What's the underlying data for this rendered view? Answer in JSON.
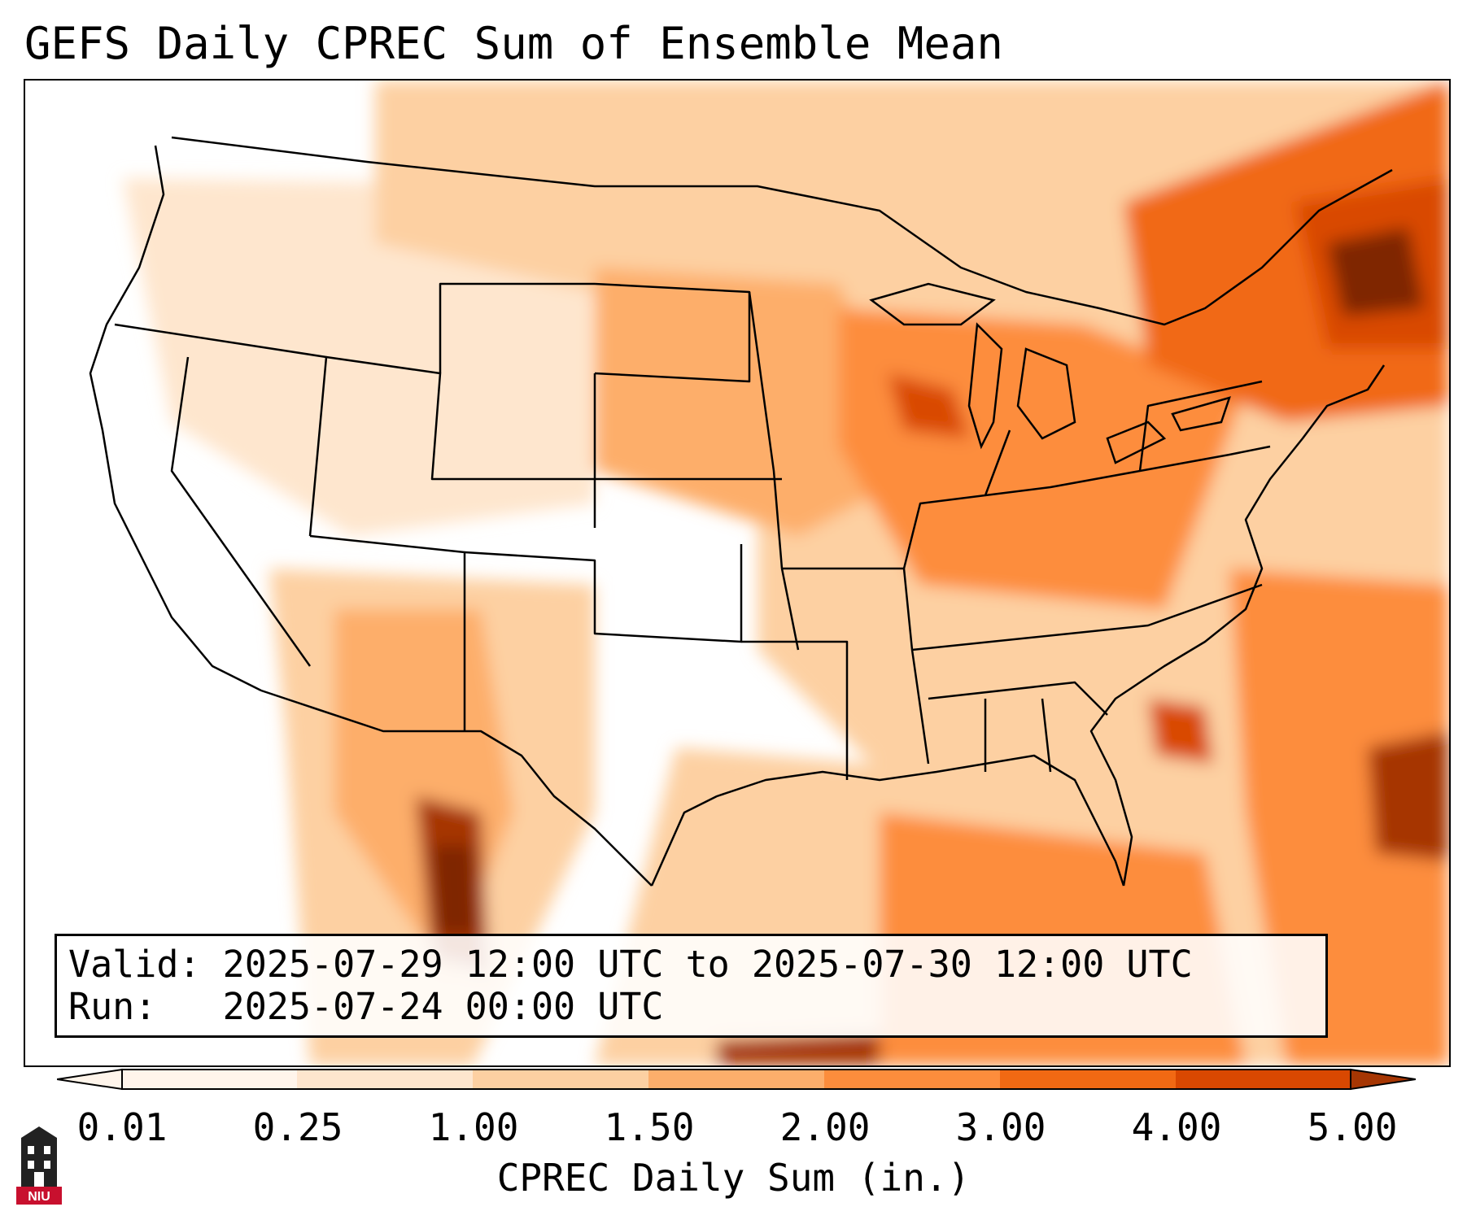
{
  "title": "GEFS Daily CPREC Sum of Ensemble Mean",
  "valid_line": "Valid: 2025-07-29 12:00 UTC to 2025-07-30 12:00 UTC",
  "run_line": "Run:   2025-07-24 00:00 UTC",
  "colorbar": {
    "label": "CPREC Daily Sum (in.)",
    "ticks": [
      "0.01",
      "0.25",
      "1.00",
      "1.50",
      "2.00",
      "3.00",
      "4.00",
      "5.00"
    ],
    "colors": [
      "#fff5eb",
      "#fee6ce",
      "#fdd0a2",
      "#fdae6b",
      "#fd8d3c",
      "#f16913",
      "#d94801",
      "#a63603",
      "#7f2704"
    ],
    "extend": "both"
  },
  "logo": {
    "icon": "niu-tower-logo-icon",
    "text": "NIU",
    "color": "#c8102e"
  },
  "map": {
    "region": "CONUS",
    "colormap": "Oranges",
    "boundaries": "state and national borders"
  }
}
